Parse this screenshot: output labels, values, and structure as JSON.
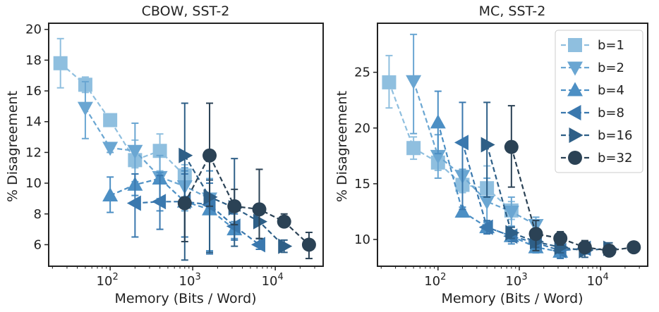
{
  "chart_data": [
    {
      "type": "line",
      "title": "CBOW, SST-2",
      "xlabel": "Memory (Bits / Word)",
      "ylabel": "% Disagreement",
      "xscale": "log",
      "xlim": [
        18,
        38000
      ],
      "ylim": [
        4.6,
        20.4
      ],
      "yticks": [
        6,
        8,
        10,
        12,
        14,
        16,
        18,
        20
      ],
      "ytick_labels": [
        "6",
        "8",
        "10",
        "12",
        "14",
        "16",
        "18",
        "20"
      ],
      "xtick_labels": [
        {
          "base": "10",
          "exp": "2",
          "value": 100
        },
        {
          "base": "10",
          "exp": "3",
          "value": 1000
        },
        {
          "base": "10",
          "exp": "4",
          "value": 10000
        }
      ],
      "legend": false,
      "series": [
        {
          "name": "b=1",
          "marker": "square",
          "color": "#8fbfdf",
          "x": [
            25,
            50,
            100,
            200,
            400,
            800
          ],
          "y": [
            17.8,
            16.4,
            14.1,
            11.5,
            12.1,
            10.5
          ],
          "err_lo": [
            16.2,
            15.9,
            13.7,
            11.0,
            10.8,
            8.4
          ],
          "err_hi": [
            19.4,
            16.9,
            14.5,
            12.8,
            13.2,
            11.2
          ]
        },
        {
          "name": "b=2",
          "marker": "triangle-down",
          "color": "#6aa6d2",
          "x": [
            50,
            100,
            200,
            400,
            800,
            1600
          ],
          "y": [
            14.9,
            12.3,
            12.1,
            10.4,
            9.8,
            9.0
          ],
          "err_lo": [
            12.9,
            12.0,
            10.1,
            9.0,
            8.2,
            5.6
          ],
          "err_hi": [
            16.6,
            12.6,
            13.9,
            11.8,
            11.0,
            10.3
          ]
        },
        {
          "name": "b=4",
          "marker": "triangle-up",
          "color": "#4c8fc4",
          "x": [
            100,
            200,
            400,
            800,
            1600,
            3200
          ],
          "y": [
            9.2,
            9.9,
            10.3,
            8.8,
            8.3,
            7.0
          ],
          "err_lo": [
            8.1,
            9.2,
            8.2,
            6.5,
            5.6,
            6.4
          ],
          "err_hi": [
            10.4,
            10.6,
            10.7,
            10.8,
            10.8,
            7.5
          ]
        },
        {
          "name": "b=8",
          "marker": "triangle-left",
          "color": "#3a78ae",
          "x": [
            200,
            400,
            800,
            1600,
            3200,
            6400
          ],
          "y": [
            8.7,
            8.8,
            8.8,
            8.6,
            7.2,
            6.0
          ],
          "err_lo": [
            6.5,
            7.0,
            6.5,
            5.4,
            6.3,
            5.7
          ],
          "err_hi": [
            10.6,
            10.5,
            10.6,
            10.0,
            8.0,
            6.4
          ]
        },
        {
          "name": "b=16",
          "marker": "triangle-right",
          "color": "#2e5f87",
          "x": [
            800,
            1600,
            3200,
            6400,
            12800
          ],
          "y": [
            11.8,
            9.1,
            8.4,
            7.5,
            5.9
          ],
          "err_lo": [
            5.0,
            5.5,
            5.9,
            6.4,
            5.5
          ],
          "err_hi": [
            15.2,
            10.2,
            11.6,
            8.5,
            6.3
          ]
        },
        {
          "name": "b=32",
          "marker": "circle",
          "color": "#2b4255",
          "x": [
            800,
            1600,
            3200,
            6400,
            12800,
            25600
          ],
          "y": [
            8.7,
            11.8,
            8.5,
            8.3,
            7.5,
            6.0
          ],
          "err_lo": [
            6.2,
            8.5,
            7.3,
            6.4,
            7.2,
            5.1
          ],
          "err_hi": [
            9.1,
            15.2,
            9.6,
            10.9,
            8.0,
            6.8
          ]
        }
      ]
    },
    {
      "type": "line",
      "title": "MC, SST-2",
      "xlabel": "Memory (Bits / Word)",
      "ylabel": "% Disagreement",
      "xscale": "log",
      "xlim": [
        18,
        38000
      ],
      "ylim": [
        7.6,
        29.4
      ],
      "yticks": [
        10,
        15,
        20,
        25
      ],
      "ytick_labels": [
        "10",
        "15",
        "20",
        "25"
      ],
      "xtick_labels": [
        {
          "base": "10",
          "exp": "2",
          "value": 100
        },
        {
          "base": "10",
          "exp": "3",
          "value": 1000
        },
        {
          "base": "10",
          "exp": "4",
          "value": 10000
        }
      ],
      "legend": true,
      "legend_loc": "upper right",
      "series": [
        {
          "name": "b=1",
          "marker": "square",
          "color": "#8fbfdf",
          "x": [
            25,
            50,
            100,
            200,
            400,
            800
          ],
          "y": [
            24.1,
            18.2,
            16.9,
            14.9,
            14.6,
            12.6
          ],
          "err_lo": [
            21.8,
            17.2,
            16.2,
            14.2,
            13.3,
            11.8
          ],
          "err_hi": [
            26.5,
            19.2,
            17.6,
            15.6,
            16.6,
            13.4
          ]
        },
        {
          "name": "b=2",
          "marker": "triangle-down",
          "color": "#6aa6d2",
          "x": [
            50,
            100,
            200,
            400,
            800,
            1600
          ],
          "y": [
            24.2,
            17.5,
            15.7,
            13.4,
            12.5,
            11.3
          ],
          "err_lo": [
            19.5,
            15.5,
            12.5,
            11.5,
            11.2,
            10.3
          ],
          "err_hi": [
            28.4,
            19.4,
            16.3,
            15.5,
            13.8,
            12.0
          ]
        },
        {
          "name": "b=4",
          "marker": "triangle-up",
          "color": "#4c8fc4",
          "x": [
            100,
            200,
            400,
            800,
            1600,
            3200
          ],
          "y": [
            20.5,
            12.5,
            11.1,
            10.3,
            9.3,
            8.9
          ],
          "err_lo": [
            17.7,
            12.1,
            10.6,
            9.6,
            8.8,
            8.4
          ],
          "err_hi": [
            23.3,
            12.9,
            11.6,
            11.1,
            9.8,
            9.4
          ]
        },
        {
          "name": "b=8",
          "marker": "triangle-left",
          "color": "#3a78ae",
          "x": [
            200,
            400,
            800,
            1600,
            3200,
            6400
          ],
          "y": [
            18.7,
            11.1,
            10.3,
            9.7,
            9.0,
            9.2
          ],
          "err_lo": [
            12.7,
            10.5,
            9.8,
            9.2,
            8.3,
            8.7
          ],
          "err_hi": [
            22.3,
            11.7,
            10.8,
            10.2,
            9.6,
            9.7
          ]
        },
        {
          "name": "b=16",
          "marker": "triangle-right",
          "color": "#2e5f87",
          "x": [
            400,
            800,
            1600,
            3200,
            6400,
            12800
          ],
          "y": [
            18.5,
            10.6,
            9.8,
            9.3,
            9.0,
            9.2
          ],
          "err_lo": [
            13.8,
            10.1,
            9.3,
            8.8,
            8.4,
            8.7
          ],
          "err_hi": [
            22.3,
            11.1,
            10.3,
            9.8,
            9.5,
            9.7
          ]
        },
        {
          "name": "b=32",
          "marker": "circle",
          "color": "#2b4255",
          "x": [
            800,
            1600,
            3200,
            6400,
            12800,
            25600
          ],
          "y": [
            18.3,
            10.5,
            10.1,
            9.3,
            9.0,
            9.3
          ],
          "err_lo": [
            14.7,
            9.0,
            9.5,
            8.8,
            8.5,
            9.0
          ],
          "err_hi": [
            22.0,
            11.7,
            10.7,
            9.9,
            9.5,
            9.6
          ]
        }
      ]
    }
  ]
}
